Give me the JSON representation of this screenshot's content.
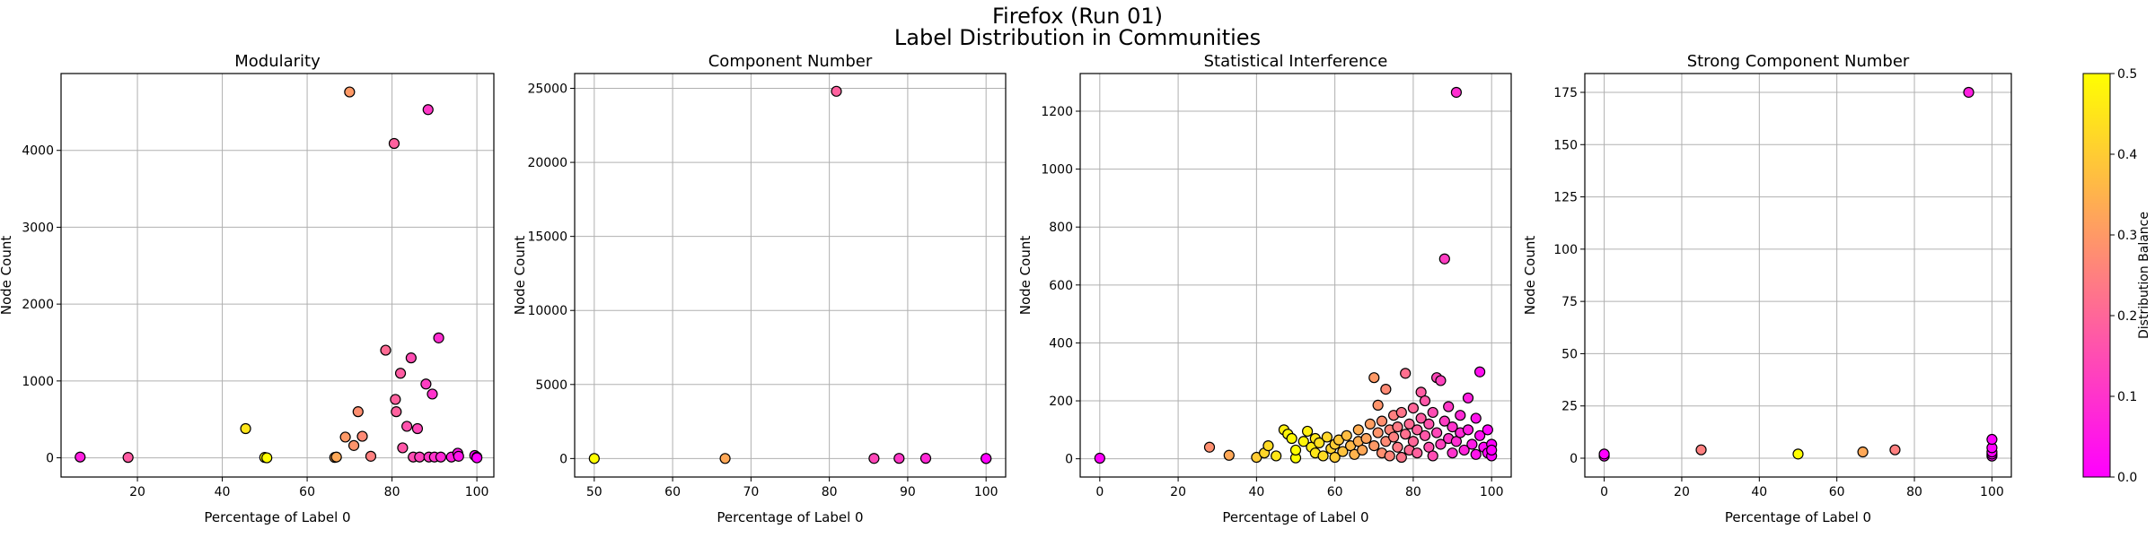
{
  "figure": {
    "title_line1": "Firefox (Run 01)",
    "title_line2": "Label Distribution in Communities"
  },
  "colorbar": {
    "label": "Distribution Balance",
    "range": [
      0.0,
      0.5
    ],
    "ticks": [
      0.0,
      0.1,
      0.2,
      0.3,
      0.4,
      0.5
    ],
    "colormap": "spring",
    "color_low": "#ff00ff",
    "color_high": "#ffff00"
  },
  "chart_data": [
    {
      "type": "scatter",
      "title": "Modularity",
      "xlabel": "Percentage of Label 0",
      "ylabel": "Node Count",
      "xlim": [
        2,
        104
      ],
      "ylim": [
        -250,
        5000
      ],
      "xticks": [
        20,
        40,
        60,
        80,
        100
      ],
      "yticks": [
        0,
        1000,
        2000,
        3000,
        4000
      ],
      "grid": true,
      "points": [
        {
          "x": 6.5,
          "y": 10,
          "c": 0.06
        },
        {
          "x": 17.8,
          "y": 5,
          "c": 0.18
        },
        {
          "x": 45.5,
          "y": 380,
          "c": 0.45
        },
        {
          "x": 50,
          "y": 5,
          "c": 0.5
        },
        {
          "x": 50.5,
          "y": 0,
          "c": 0.5
        },
        {
          "x": 66.5,
          "y": 5,
          "c": 0.33
        },
        {
          "x": 66.9,
          "y": 10,
          "c": 0.33
        },
        {
          "x": 69,
          "y": 270,
          "c": 0.3
        },
        {
          "x": 70,
          "y": 4760,
          "c": 0.3
        },
        {
          "x": 71,
          "y": 160,
          "c": 0.29
        },
        {
          "x": 72,
          "y": 600,
          "c": 0.28
        },
        {
          "x": 73,
          "y": 280,
          "c": 0.27
        },
        {
          "x": 75,
          "y": 20,
          "c": 0.25
        },
        {
          "x": 78.5,
          "y": 1400,
          "c": 0.21
        },
        {
          "x": 80.5,
          "y": 4090,
          "c": 0.19
        },
        {
          "x": 80.8,
          "y": 760,
          "c": 0.19
        },
        {
          "x": 81,
          "y": 600,
          "c": 0.19
        },
        {
          "x": 82,
          "y": 1100,
          "c": 0.18
        },
        {
          "x": 82.5,
          "y": 130,
          "c": 0.17
        },
        {
          "x": 83.5,
          "y": 410,
          "c": 0.16
        },
        {
          "x": 84.5,
          "y": 1300,
          "c": 0.15
        },
        {
          "x": 85,
          "y": 10,
          "c": 0.15
        },
        {
          "x": 86,
          "y": 380,
          "c": 0.14
        },
        {
          "x": 86.5,
          "y": 10,
          "c": 0.13
        },
        {
          "x": 88,
          "y": 960,
          "c": 0.12
        },
        {
          "x": 88.5,
          "y": 4530,
          "c": 0.11
        },
        {
          "x": 88.7,
          "y": 10,
          "c": 0.11
        },
        {
          "x": 89.5,
          "y": 830,
          "c": 0.1
        },
        {
          "x": 90,
          "y": 10,
          "c": 0.1
        },
        {
          "x": 91,
          "y": 1560,
          "c": 0.09
        },
        {
          "x": 91.5,
          "y": 10,
          "c": 0.08
        },
        {
          "x": 94,
          "y": 10,
          "c": 0.06
        },
        {
          "x": 95.5,
          "y": 60,
          "c": 0.04
        },
        {
          "x": 95.7,
          "y": 20,
          "c": 0.04
        },
        {
          "x": 99.5,
          "y": 30,
          "c": 0.0
        },
        {
          "x": 100,
          "y": 10,
          "c": 0.0
        },
        {
          "x": 100,
          "y": 0,
          "c": 0.0
        }
      ]
    },
    {
      "type": "scatter",
      "title": "Component Number",
      "xlabel": "Percentage of Label 0",
      "ylabel": "Node Count",
      "xlim": [
        47.5,
        102.5
      ],
      "ylim": [
        -1250,
        26000
      ],
      "xticks": [
        50,
        60,
        70,
        80,
        90,
        100
      ],
      "yticks": [
        0,
        5000,
        10000,
        15000,
        20000,
        25000
      ],
      "grid": true,
      "points": [
        {
          "x": 50,
          "y": 2,
          "c": 0.5
        },
        {
          "x": 66.7,
          "y": 3,
          "c": 0.33
        },
        {
          "x": 80.9,
          "y": 24800,
          "c": 0.19
        },
        {
          "x": 85.7,
          "y": 7,
          "c": 0.14
        },
        {
          "x": 88.9,
          "y": 9,
          "c": 0.11
        },
        {
          "x": 92.3,
          "y": 13,
          "c": 0.08
        },
        {
          "x": 100,
          "y": 1,
          "c": 0.0
        },
        {
          "x": 100,
          "y": 2,
          "c": 0.0
        }
      ]
    },
    {
      "type": "scatter",
      "title": "Statistical Interference",
      "xlabel": "Percentage of Label 0",
      "ylabel": "Node Count",
      "xlim": [
        -5,
        105
      ],
      "ylim": [
        -63,
        1330
      ],
      "xticks": [
        0,
        20,
        40,
        60,
        80,
        100
      ],
      "yticks": [
        0,
        200,
        400,
        600,
        800,
        1000,
        1200
      ],
      "grid": true,
      "points": [
        {
          "x": 0,
          "y": 2,
          "c": 0.0
        },
        {
          "x": 28,
          "y": 40,
          "c": 0.28
        },
        {
          "x": 33,
          "y": 12,
          "c": 0.33
        },
        {
          "x": 40,
          "y": 5,
          "c": 0.4
        },
        {
          "x": 42,
          "y": 20,
          "c": 0.42
        },
        {
          "x": 43,
          "y": 45,
          "c": 0.43
        },
        {
          "x": 45,
          "y": 10,
          "c": 0.45
        },
        {
          "x": 47,
          "y": 100,
          "c": 0.47
        },
        {
          "x": 48,
          "y": 85,
          "c": 0.48
        },
        {
          "x": 49,
          "y": 70,
          "c": 0.49
        },
        {
          "x": 50,
          "y": 3,
          "c": 0.5
        },
        {
          "x": 50,
          "y": 30,
          "c": 0.5
        },
        {
          "x": 52,
          "y": 60,
          "c": 0.48
        },
        {
          "x": 53,
          "y": 95,
          "c": 0.47
        },
        {
          "x": 54,
          "y": 40,
          "c": 0.46
        },
        {
          "x": 55,
          "y": 70,
          "c": 0.45
        },
        {
          "x": 55,
          "y": 20,
          "c": 0.45
        },
        {
          "x": 56,
          "y": 55,
          "c": 0.44
        },
        {
          "x": 57,
          "y": 10,
          "c": 0.43
        },
        {
          "x": 58,
          "y": 75,
          "c": 0.42
        },
        {
          "x": 59,
          "y": 35,
          "c": 0.41
        },
        {
          "x": 60,
          "y": 50,
          "c": 0.4
        },
        {
          "x": 60,
          "y": 5,
          "c": 0.4
        },
        {
          "x": 61,
          "y": 65,
          "c": 0.39
        },
        {
          "x": 62,
          "y": 25,
          "c": 0.38
        },
        {
          "x": 63,
          "y": 80,
          "c": 0.37
        },
        {
          "x": 64,
          "y": 45,
          "c": 0.36
        },
        {
          "x": 65,
          "y": 15,
          "c": 0.35
        },
        {
          "x": 66,
          "y": 60,
          "c": 0.34
        },
        {
          "x": 66,
          "y": 100,
          "c": 0.34
        },
        {
          "x": 67,
          "y": 30,
          "c": 0.33
        },
        {
          "x": 68,
          "y": 70,
          "c": 0.32
        },
        {
          "x": 69,
          "y": 120,
          "c": 0.31
        },
        {
          "x": 70,
          "y": 280,
          "c": 0.3
        },
        {
          "x": 70,
          "y": 45,
          "c": 0.3
        },
        {
          "x": 71,
          "y": 90,
          "c": 0.29
        },
        {
          "x": 71,
          "y": 185,
          "c": 0.29
        },
        {
          "x": 72,
          "y": 20,
          "c": 0.28
        },
        {
          "x": 72,
          "y": 130,
          "c": 0.28
        },
        {
          "x": 73,
          "y": 60,
          "c": 0.27
        },
        {
          "x": 73,
          "y": 240,
          "c": 0.27
        },
        {
          "x": 74,
          "y": 100,
          "c": 0.26
        },
        {
          "x": 74,
          "y": 10,
          "c": 0.26
        },
        {
          "x": 75,
          "y": 75,
          "c": 0.25
        },
        {
          "x": 75,
          "y": 150,
          "c": 0.25
        },
        {
          "x": 76,
          "y": 40,
          "c": 0.24
        },
        {
          "x": 76,
          "y": 110,
          "c": 0.24
        },
        {
          "x": 77,
          "y": 160,
          "c": 0.23
        },
        {
          "x": 77,
          "y": 5,
          "c": 0.23
        },
        {
          "x": 78,
          "y": 295,
          "c": 0.22
        },
        {
          "x": 78,
          "y": 85,
          "c": 0.22
        },
        {
          "x": 79,
          "y": 120,
          "c": 0.21
        },
        {
          "x": 79,
          "y": 30,
          "c": 0.21
        },
        {
          "x": 80,
          "y": 175,
          "c": 0.2
        },
        {
          "x": 80,
          "y": 60,
          "c": 0.2
        },
        {
          "x": 81,
          "y": 100,
          "c": 0.19
        },
        {
          "x": 81,
          "y": 20,
          "c": 0.19
        },
        {
          "x": 82,
          "y": 230,
          "c": 0.18
        },
        {
          "x": 82,
          "y": 140,
          "c": 0.18
        },
        {
          "x": 83,
          "y": 80,
          "c": 0.17
        },
        {
          "x": 83,
          "y": 200,
          "c": 0.17
        },
        {
          "x": 84,
          "y": 40,
          "c": 0.16
        },
        {
          "x": 84,
          "y": 120,
          "c": 0.16
        },
        {
          "x": 85,
          "y": 160,
          "c": 0.15
        },
        {
          "x": 85,
          "y": 10,
          "c": 0.15
        },
        {
          "x": 86,
          "y": 280,
          "c": 0.14
        },
        {
          "x": 86,
          "y": 90,
          "c": 0.14
        },
        {
          "x": 87,
          "y": 270,
          "c": 0.13
        },
        {
          "x": 87,
          "y": 50,
          "c": 0.13
        },
        {
          "x": 88,
          "y": 690,
          "c": 0.12
        },
        {
          "x": 88,
          "y": 130,
          "c": 0.12
        },
        {
          "x": 89,
          "y": 70,
          "c": 0.11
        },
        {
          "x": 89,
          "y": 180,
          "c": 0.11
        },
        {
          "x": 90,
          "y": 110,
          "c": 0.1
        },
        {
          "x": 90,
          "y": 20,
          "c": 0.1
        },
        {
          "x": 91,
          "y": 1265,
          "c": 0.09
        },
        {
          "x": 91,
          "y": 60,
          "c": 0.09
        },
        {
          "x": 92,
          "y": 150,
          "c": 0.08
        },
        {
          "x": 92,
          "y": 90,
          "c": 0.08
        },
        {
          "x": 93,
          "y": 30,
          "c": 0.07
        },
        {
          "x": 94,
          "y": 210,
          "c": 0.06
        },
        {
          "x": 94,
          "y": 100,
          "c": 0.06
        },
        {
          "x": 95,
          "y": 50,
          "c": 0.05
        },
        {
          "x": 96,
          "y": 140,
          "c": 0.04
        },
        {
          "x": 96,
          "y": 15,
          "c": 0.04
        },
        {
          "x": 97,
          "y": 300,
          "c": 0.03
        },
        {
          "x": 97,
          "y": 80,
          "c": 0.03
        },
        {
          "x": 98,
          "y": 40,
          "c": 0.02
        },
        {
          "x": 99,
          "y": 100,
          "c": 0.01
        },
        {
          "x": 99,
          "y": 20,
          "c": 0.01
        },
        {
          "x": 100,
          "y": 50,
          "c": 0.0
        },
        {
          "x": 100,
          "y": 10,
          "c": 0.0
        },
        {
          "x": 100,
          "y": 30,
          "c": 0.0
        }
      ]
    },
    {
      "type": "scatter",
      "title": "Strong Component Number",
      "xlabel": "Percentage of Label 0",
      "ylabel": "Node Count",
      "xlim": [
        -5,
        105
      ],
      "ylim": [
        -9,
        184
      ],
      "xticks": [
        0,
        20,
        40,
        60,
        80,
        100
      ],
      "yticks": [
        0,
        25,
        50,
        75,
        100,
        125,
        150,
        175
      ],
      "grid": true,
      "points": [
        {
          "x": 0,
          "y": 1,
          "c": 0.0
        },
        {
          "x": 0,
          "y": 2,
          "c": 0.0
        },
        {
          "x": 25,
          "y": 4,
          "c": 0.25
        },
        {
          "x": 50,
          "y": 2,
          "c": 0.5
        },
        {
          "x": 66.7,
          "y": 3,
          "c": 0.33
        },
        {
          "x": 75,
          "y": 4,
          "c": 0.25
        },
        {
          "x": 94,
          "y": 175,
          "c": 0.06
        },
        {
          "x": 100,
          "y": 1,
          "c": 0.0
        },
        {
          "x": 100,
          "y": 2,
          "c": 0.0
        },
        {
          "x": 100,
          "y": 3,
          "c": 0.0
        },
        {
          "x": 100,
          "y": 5,
          "c": 0.0
        },
        {
          "x": 100,
          "y": 9,
          "c": 0.0
        }
      ]
    }
  ]
}
